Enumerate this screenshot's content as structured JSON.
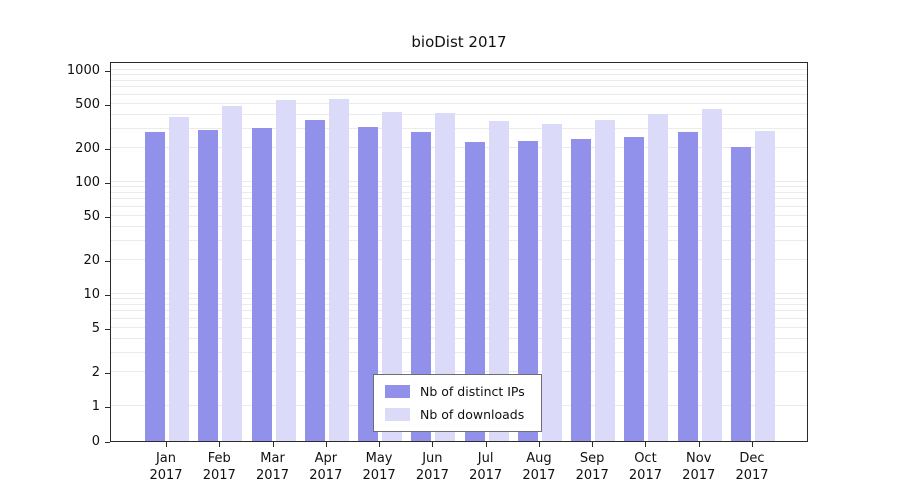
{
  "chart_data": {
    "type": "bar",
    "title": "bioDist 2017",
    "categories": [
      "Jan",
      "Feb",
      "Mar",
      "Apr",
      "May",
      "Jun",
      "Jul",
      "Aug",
      "Sep",
      "Oct",
      "Nov",
      "Dec"
    ],
    "x_year": "2017",
    "series": [
      {
        "name": "Nb of distinct IPs",
        "color": "#9191eb",
        "values": [
          280,
          290,
          305,
          360,
          310,
          280,
          228,
          232,
          242,
          252,
          280,
          207
        ]
      },
      {
        "name": "Nb of downloads",
        "color": "#dbdaf8",
        "values": [
          382,
          478,
          537,
          550,
          422,
          413,
          350,
          330,
          358,
          405,
          447,
          286
        ]
      }
    ],
    "y_ticks": [
      1000,
      500,
      200,
      100,
      50,
      20,
      10,
      5,
      2,
      1,
      0
    ],
    "y_scale": "log",
    "ylim": [
      0,
      1200
    ],
    "grid": true,
    "legend_position": "bottom-center"
  }
}
